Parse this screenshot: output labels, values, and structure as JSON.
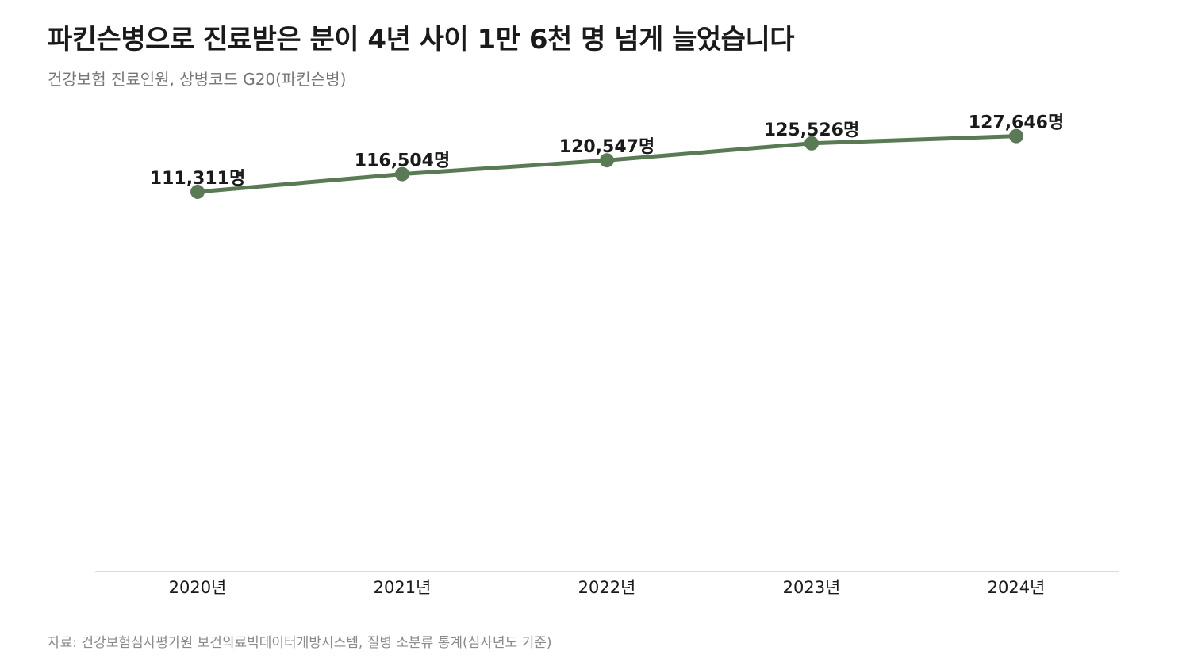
{
  "header": {
    "title": "파킨슨병으로 진료받은 분이 4년 사이 1만 6천 명 넘게 늘었습니다",
    "subtitle": "건강보험 진료인원, 상병코드 G20(파킨슨병)"
  },
  "footer": {
    "source": "자료: 건강보험심사평가원 보건의료빅데이터개방시스템, 질병 소분류 통계(심사년도 기준)"
  },
  "chart_data": {
    "type": "line",
    "categories": [
      "2020년",
      "2021년",
      "2022년",
      "2023년",
      "2024년"
    ],
    "series": [
      {
        "values": [
          111311,
          116504,
          120547,
          125526,
          127646
        ],
        "labels": [
          "111,311명",
          "116,504명",
          "120,547명",
          "125,526명",
          "127,646명"
        ]
      }
    ],
    "ylim": [
      0,
      135000
    ],
    "grid": false,
    "colors": {
      "line": "#5a7a56",
      "axis": "#cfcfcf"
    }
  }
}
